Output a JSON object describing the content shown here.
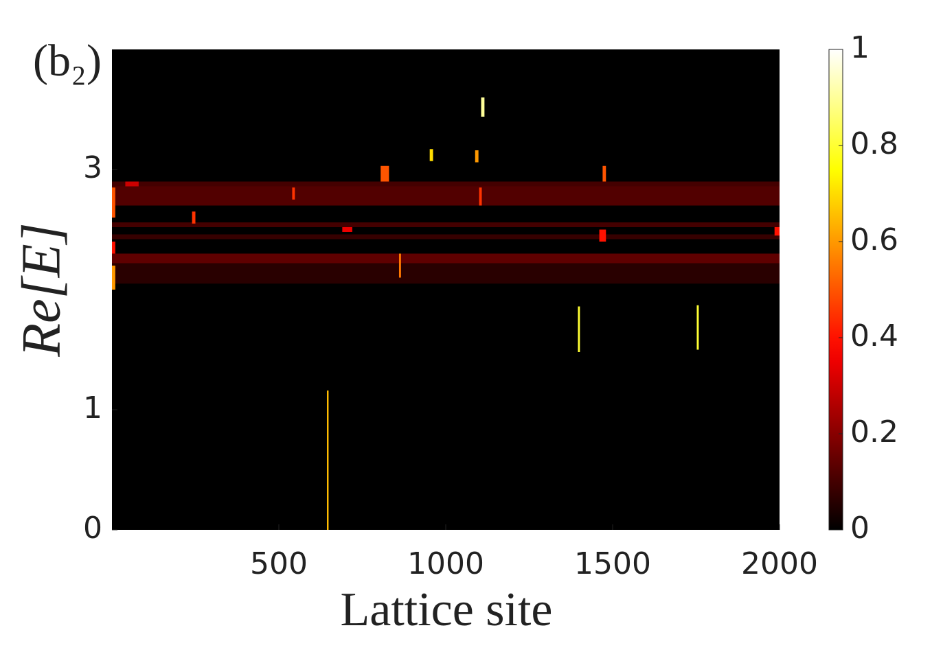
{
  "chart_data": {
    "type": "heatmap",
    "title": "(b₂)",
    "x_label": "Lattice site",
    "y_label": "Re[E]",
    "xlim": [
      0,
      2000
    ],
    "xticks": [
      500,
      1000,
      1500,
      2000
    ],
    "ylim": [
      0,
      4
    ],
    "yticks": [
      0,
      1,
      3
    ],
    "clim": [
      0,
      1
    ],
    "cticks": [
      0,
      0.2,
      0.4,
      0.6,
      0.8,
      1
    ],
    "colormap": "hot",
    "cells": [
      {
        "x": [
          0,
          2000
        ],
        "y": [
          2.7,
          2.86
        ],
        "value": 0.12
      },
      {
        "x": [
          0,
          2000
        ],
        "y": [
          2.2,
          2.3
        ],
        "value": 0.14
      },
      {
        "x": [
          0,
          2000
        ],
        "y": [
          2.86,
          2.9
        ],
        "value": 0.1
      },
      {
        "x": [
          0,
          2000
        ],
        "y": [
          2.52,
          2.56
        ],
        "value": 0.1
      },
      {
        "x": [
          0,
          2000
        ],
        "y": [
          2.42,
          2.46
        ],
        "value": 0.08
      },
      {
        "x": [
          0,
          2000
        ],
        "y": [
          2.05,
          2.22
        ],
        "value": 0.06
      },
      {
        "x": [
          644,
          649
        ],
        "y": [
          0,
          1.16
        ],
        "value": 0.65
      },
      {
        "x": [
          1106,
          1116
        ],
        "y": [
          3.44,
          3.6
        ],
        "value": 0.9
      },
      {
        "x": [
          952,
          962
        ],
        "y": [
          3.07,
          3.17
        ],
        "value": 0.7
      },
      {
        "x": [
          1088,
          1098
        ],
        "y": [
          3.06,
          3.16
        ],
        "value": 0.6
      },
      {
        "x": [
          805,
          830
        ],
        "y": [
          2.9,
          3.03
        ],
        "value": 0.5
      },
      {
        "x": [
          1470,
          1480
        ],
        "y": [
          2.9,
          3.03
        ],
        "value": 0.5
      },
      {
        "x": [
          1396,
          1402
        ],
        "y": [
          1.48,
          1.86
        ],
        "value": 0.8
      },
      {
        "x": [
          1752,
          1758
        ],
        "y": [
          1.5,
          1.87
        ],
        "value": 0.8
      },
      {
        "x": [
          0,
          10
        ],
        "y": [
          2.6,
          2.85
        ],
        "value": 0.5
      },
      {
        "x": [
          0,
          10
        ],
        "y": [
          2.0,
          2.2
        ],
        "value": 0.6
      },
      {
        "x": [
          0,
          10
        ],
        "y": [
          2.3,
          2.4
        ],
        "value": 0.4
      },
      {
        "x": [
          240,
          250
        ],
        "y": [
          2.55,
          2.65
        ],
        "value": 0.45
      },
      {
        "x": [
          540,
          548
        ],
        "y": [
          2.75,
          2.85
        ],
        "value": 0.45
      },
      {
        "x": [
          860,
          866
        ],
        "y": [
          2.1,
          2.3
        ],
        "value": 0.55
      },
      {
        "x": [
          1100,
          1108
        ],
        "y": [
          2.7,
          2.85
        ],
        "value": 0.45
      },
      {
        "x": [
          1460,
          1480
        ],
        "y": [
          2.4,
          2.5
        ],
        "value": 0.4
      },
      {
        "x": [
          690,
          720
        ],
        "y": [
          2.48,
          2.52
        ],
        "value": 0.35
      },
      {
        "x": [
          1985,
          2000
        ],
        "y": [
          2.45,
          2.52
        ],
        "value": 0.4
      },
      {
        "x": [
          40,
          80
        ],
        "y": [
          2.86,
          2.9
        ],
        "value": 0.3
      }
    ]
  }
}
